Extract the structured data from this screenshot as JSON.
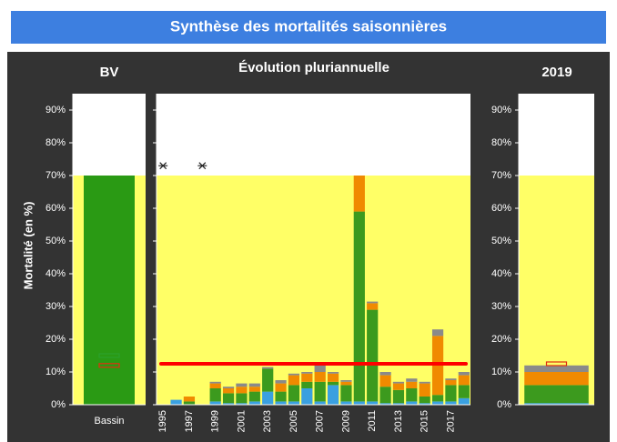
{
  "title": "Synthèse des mortalités saisonnières",
  "y_label": "Mortalité (en %)",
  "chart_data": [
    {
      "type": "bar",
      "title": "BV",
      "categories": [
        "Bassin"
      ],
      "values": [
        70
      ],
      "color": "#2a9a14",
      "ylim": [
        0,
        95
      ],
      "yticks": [
        {
          "value": 0,
          "label": "0%"
        },
        {
          "value": 10,
          "label": "10%"
        },
        {
          "value": 20,
          "label": "20%"
        },
        {
          "value": 30,
          "label": "30%"
        },
        {
          "value": 40,
          "label": "40%"
        },
        {
          "value": 50,
          "label": "50%"
        },
        {
          "value": 60,
          "label": "60%"
        },
        {
          "value": 70,
          "label": "70%"
        },
        {
          "value": 80,
          "label": "80%"
        },
        {
          "value": 90,
          "label": "90%"
        }
      ],
      "zone_limit": 70,
      "markers": [
        {
          "value": 15,
          "color": "#2ca02c"
        },
        {
          "value": 12,
          "color": "#e03010"
        }
      ]
    },
    {
      "type": "stacked_bar",
      "title": "Évolution pluriannuelle",
      "categories": [
        "1995",
        null,
        "1997",
        null,
        "1999",
        null,
        "2001",
        null,
        "2003",
        null,
        "2005",
        null,
        "2007",
        null,
        "2009",
        null,
        "2011",
        null,
        "2013",
        null,
        "2015",
        null,
        "2017",
        null
      ],
      "series": [
        {
          "color": "#3aa0e0",
          "values": [
            null,
            1.5,
            0,
            null,
            1,
            0.5,
            0.5,
            1,
            4,
            1,
            1,
            5,
            1,
            6,
            1,
            1,
            1,
            0.5,
            0.5,
            1,
            0.5,
            1,
            1,
            2
          ]
        },
        {
          "color": "#3c9a1e",
          "values": [
            null,
            0,
            1,
            null,
            4,
            3,
            3,
            3,
            7,
            3,
            5,
            2,
            6,
            1,
            5,
            58,
            28,
            5,
            4,
            4,
            2,
            2,
            5,
            4
          ]
        },
        {
          "color": "#f08a00",
          "values": [
            null,
            0,
            1.5,
            null,
            1.5,
            1.5,
            2,
            1.5,
            0,
            2.5,
            3,
            2.5,
            3,
            2.5,
            1,
            11,
            2,
            3.5,
            2,
            2,
            4,
            18,
            1.5,
            3
          ]
        },
        {
          "color": "#8a8a8a",
          "values": [
            null,
            0,
            0,
            null,
            0.5,
            0.5,
            1,
            1,
            0.5,
            1,
            0.5,
            0.5,
            2,
            0.5,
            0.5,
            0,
            0.5,
            1,
            0.5,
            1,
            0.5,
            2,
            0.5,
            1
          ]
        }
      ],
      "ylim": [
        0,
        95
      ],
      "yticks": [
        0,
        10,
        20,
        30,
        40,
        50,
        60,
        70,
        80,
        90
      ],
      "zone_limit": 70,
      "reference_line": {
        "value": 12.5,
        "color": "#ff0000"
      },
      "asterisk_values": [
        73,
        null,
        null,
        73,
        null,
        null,
        null,
        null,
        null,
        null,
        null,
        null,
        null,
        null,
        null,
        null,
        null,
        null,
        null,
        null,
        null,
        null,
        null,
        null
      ]
    },
    {
      "type": "stacked_bar",
      "title": "2019",
      "categories": [
        null
      ],
      "series": [
        {
          "color": "#3aa0e0",
          "values": [
            0.5
          ]
        },
        {
          "color": "#3c9a1e",
          "values": [
            5.5
          ]
        },
        {
          "color": "#f08a00",
          "values": [
            4
          ]
        },
        {
          "color": "#8a8a8a",
          "values": [
            2
          ]
        }
      ],
      "ylim": [
        0,
        95
      ],
      "yticks": [
        {
          "value": 0,
          "label": "0%"
        },
        {
          "value": 10,
          "label": "10%"
        },
        {
          "value": 20,
          "label": "20%"
        },
        {
          "value": 30,
          "label": "30%"
        },
        {
          "value": 40,
          "label": "40%"
        },
        {
          "value": 50,
          "label": "50%"
        },
        {
          "value": 60,
          "label": "60%"
        },
        {
          "value": 70,
          "label": "70%"
        },
        {
          "value": 80,
          "label": "80%"
        },
        {
          "value": 90,
          "label": "90%"
        }
      ],
      "zone_limit": 70,
      "markers": [
        {
          "value": 12.5,
          "color": "#e03010"
        }
      ]
    }
  ]
}
